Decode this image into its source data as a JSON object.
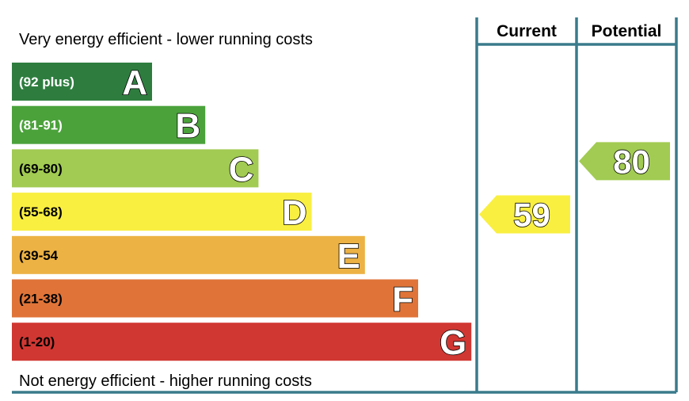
{
  "chart_data": {
    "type": "bar",
    "top_caption": "Very energy efficient - lower running costs",
    "bottom_caption": "Not energy efficient - higher running costs",
    "bands": [
      {
        "letter": "A",
        "range": "(92 plus)",
        "min": 92,
        "max": 100,
        "color": "#2e7d3f",
        "range_text_color": "#ffffff"
      },
      {
        "letter": "B",
        "range": "(81-91)",
        "min": 81,
        "max": 91,
        "color": "#4ba23b",
        "range_text_color": "#ffffff"
      },
      {
        "letter": "C",
        "range": "(69-80)",
        "min": 69,
        "max": 80,
        "color": "#a1cb52",
        "range_text_color": "#000000"
      },
      {
        "letter": "D",
        "range": "(55-68)",
        "min": 55,
        "max": 68,
        "color": "#f9ef41",
        "range_text_color": "#000000"
      },
      {
        "letter": "E",
        "range": "(39-54",
        "min": 39,
        "max": 54,
        "color": "#ecb244",
        "range_text_color": "#000000"
      },
      {
        "letter": "F",
        "range": "(21-38)",
        "min": 21,
        "max": 38,
        "color": "#e07438",
        "range_text_color": "#000000"
      },
      {
        "letter": "G",
        "range": "(1-20)",
        "min": 1,
        "max": 20,
        "color": "#d13732",
        "range_text_color": "#000000"
      }
    ],
    "columns": [
      {
        "header": "Current",
        "value": 59,
        "value_label": "59"
      },
      {
        "header": "Potential",
        "value": 80,
        "value_label": "80"
      }
    ],
    "frame_color": "#3a7b8c"
  }
}
